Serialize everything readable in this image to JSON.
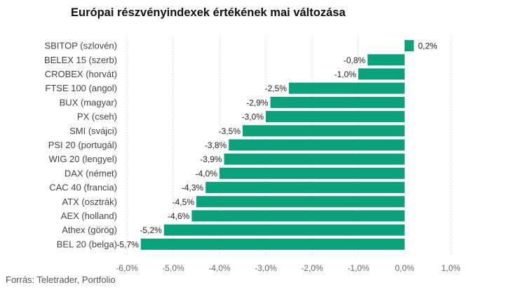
{
  "chart_data": {
    "type": "bar",
    "orientation": "horizontal",
    "title": "Európai részvényindexek értékének mai változása",
    "source": "Forrás: Teletrader, Portfolio",
    "categories": [
      "SBITOP (szlovén)",
      "BELEX 15 (szerb)",
      "CROBEX (horvát)",
      "FTSE 100 (angol)",
      "BUX (magyar)",
      "PX (cseh)",
      "SMI (svájci)",
      "PSI 20 (portugál)",
      "WIG 20 (lengyel)",
      "DAX (német)",
      "CAC 40 (francia)",
      "ATX (osztrák)",
      "AEX (holland)",
      "Athex (görög)",
      "BEL 20 (belga)"
    ],
    "values": [
      0.2,
      -0.8,
      -1.0,
      -2.5,
      -2.9,
      -3.0,
      -3.5,
      -3.8,
      -3.9,
      -4.0,
      -4.3,
      -4.5,
      -4.6,
      -5.2,
      -5.7
    ],
    "value_labels": [
      "0,2%",
      "-0,8%",
      "-1,0%",
      "-2,5%",
      "-2,9%",
      "-3,0%",
      "-3,5%",
      "-3,8%",
      "-3,9%",
      "-4,0%",
      "-4,3%",
      "-4,5%",
      "-4,6%",
      "-5,2%",
      "-5,7%"
    ],
    "xlim": [
      -6.0,
      1.0
    ],
    "x_ticks": [
      -6.0,
      -5.0,
      -4.0,
      -3.0,
      -2.0,
      -1.0,
      0.0,
      1.0
    ],
    "x_tick_labels": [
      "-6,0%",
      "-5,0%",
      "-4,0%",
      "-3,0%",
      "-2,0%",
      "-1,0%",
      "0,0%",
      "1,0%"
    ],
    "grid": true,
    "bar_color": "#0aa27a",
    "grid_color": "#dddddd"
  }
}
